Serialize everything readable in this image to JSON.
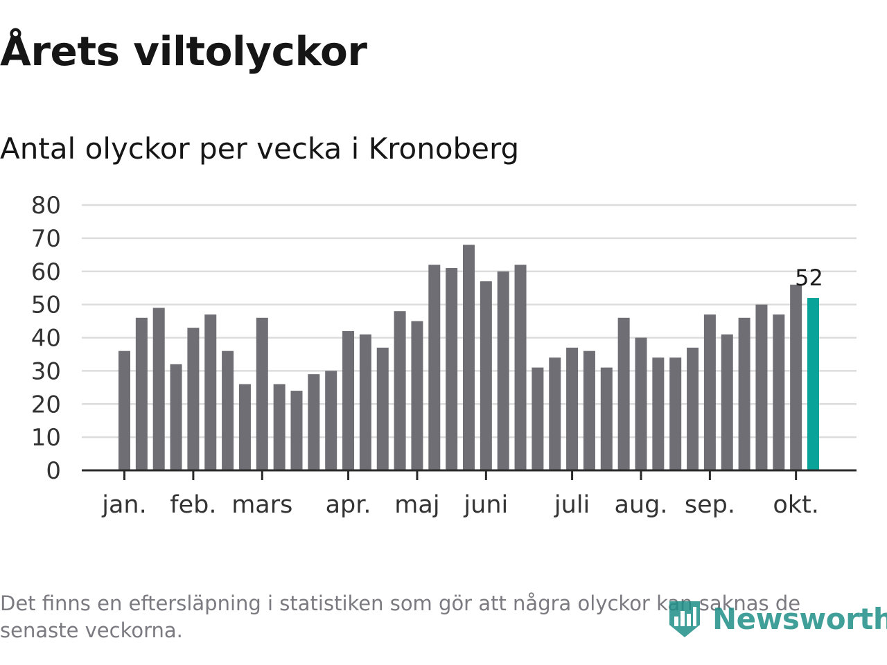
{
  "title": "Årets viltolyckor",
  "subtitle": "Antal olyckor per vecka i Kronoberg",
  "footnote": "Det finns en eftersläpning i statistiken som gör att några olyckor kan saknas de senaste veckorna.",
  "brand": {
    "name": "Newsworthy",
    "logo_icon": "bar-chart-shield-icon",
    "color": "#1f8f88"
  },
  "chart_data": {
    "type": "bar",
    "title": "Årets viltolyckor",
    "subtitle": "Antal olyckor per vecka i Kronoberg",
    "xlabel": "",
    "ylabel": "",
    "ylim": [
      0,
      80
    ],
    "yticks": [
      0,
      10,
      20,
      30,
      40,
      50,
      60,
      70,
      80
    ],
    "grid": true,
    "values": [
      36,
      46,
      49,
      32,
      43,
      47,
      36,
      26,
      46,
      26,
      24,
      29,
      30,
      42,
      41,
      37,
      48,
      45,
      62,
      61,
      68,
      57,
      60,
      62,
      31,
      34,
      37,
      36,
      31,
      46,
      40,
      34,
      34,
      37,
      47,
      41,
      46,
      50,
      47,
      56,
      52
    ],
    "month_labels": [
      {
        "label": "jan.",
        "bar_index": 0
      },
      {
        "label": "feb.",
        "bar_index": 4
      },
      {
        "label": "mars",
        "bar_index": 8
      },
      {
        "label": "apr.",
        "bar_index": 13
      },
      {
        "label": "maj",
        "bar_index": 17
      },
      {
        "label": "juni",
        "bar_index": 21
      },
      {
        "label": "juli",
        "bar_index": 26
      },
      {
        "label": "aug.",
        "bar_index": 30
      },
      {
        "label": "sep.",
        "bar_index": 34
      },
      {
        "label": "okt.",
        "bar_index": 39
      }
    ],
    "highlight": {
      "bar_index": 40,
      "label": "52"
    },
    "colors": {
      "bar": "#6f6e74",
      "highlight": "#0aa39a",
      "grid": "#dcdcdc",
      "axis": "#2a2a2a",
      "tick_text": "#333333"
    }
  }
}
